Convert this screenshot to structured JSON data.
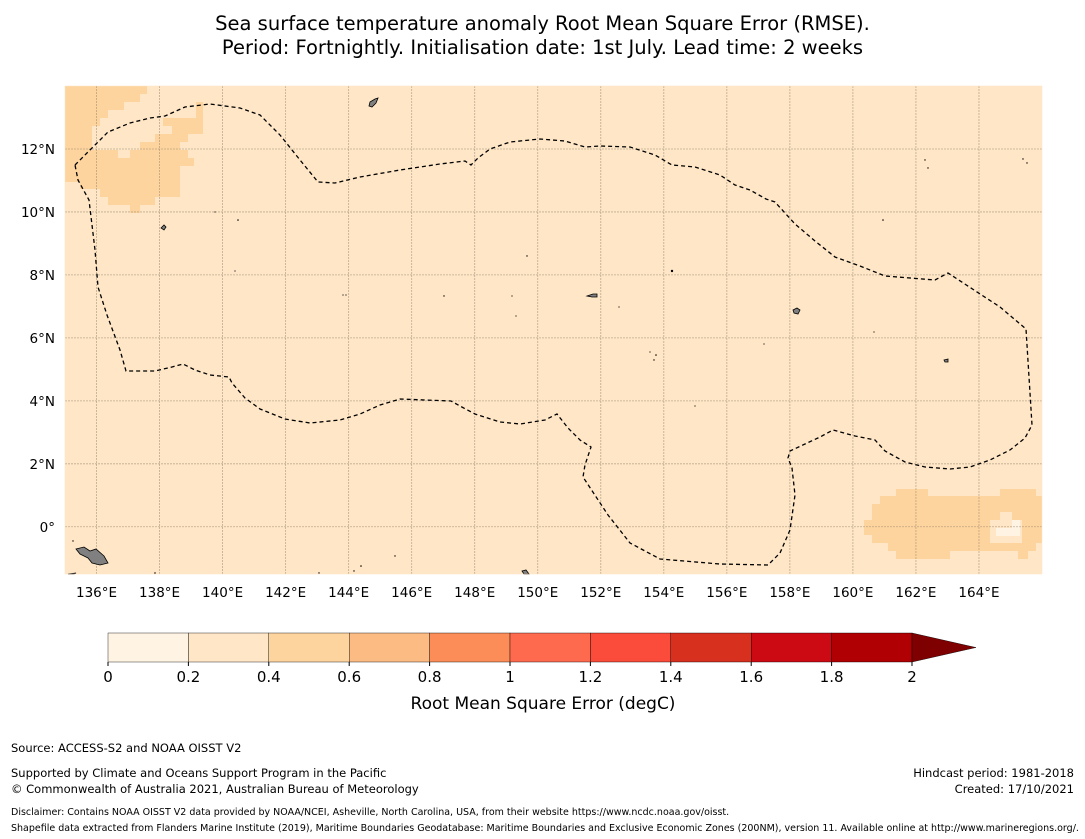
{
  "title": {
    "line1": "Sea surface temperature anomaly Root Mean Square Error (RMSE).",
    "line2": "Period: Fortnightly. Initialisation date: 1st July. Lead time: 2 weeks"
  },
  "map": {
    "lon_range": [
      135,
      166
    ],
    "lat_range": [
      -1.5,
      14
    ],
    "x_ticks": [
      "136°E",
      "138°E",
      "140°E",
      "142°E",
      "144°E",
      "146°E",
      "148°E",
      "150°E",
      "152°E",
      "154°E",
      "156°E",
      "158°E",
      "160°E",
      "162°E",
      "164°E"
    ],
    "y_ticks": [
      "12°N",
      "10°N",
      "8°N",
      "6°N",
      "4°N",
      "2°N",
      "0°"
    ],
    "background_class_color": "#fee6c6",
    "warm_patch_color": "#fdd49e",
    "light_patch_color": "#fff4e4",
    "land_color": "#808080",
    "eez_line": "dashed black"
  },
  "colorbar": {
    "ticks": [
      "0",
      "0.2",
      "0.4",
      "0.6",
      "0.8",
      "1",
      "1.2",
      "1.4",
      "1.6",
      "1.8",
      "2"
    ],
    "colors": [
      "#fff4e4",
      "#fee6c6",
      "#fdd49e",
      "#fdbb84",
      "#fc8d59",
      "#fd6a4e",
      "#fb4b3a",
      "#d7301f",
      "#cc0a14",
      "#b00003",
      "#7f0000"
    ],
    "label": "Root Mean Square Error (degC)"
  },
  "footer": {
    "source": "Source: ACCESS-S2 and NOAA OISST V2",
    "supported": "Supported by Climate and Oceans Support Program in the Pacific",
    "copyright": "© Commonwealth of Australia 2021, Australian Bureau of Meteorology",
    "hindcast": "Hindcast period: 1981-2018",
    "created": "Created: 17/10/2021",
    "disclaimer": "Disclaimer: Contains NOAA OISST V2 data provided by NOAA/NCEI, Asheville, North Carolina, USA, from their website https://www.ncdc.noaa.gov/oisst.",
    "shapefile": "Shapefile data extracted from Flanders Marine Institute (2019), Maritime Boundaries Geodatabase: Maritime Boundaries and Exclusive Economic Zones (200NM), version 11. Available online at http://www.marineregions.org/."
  }
}
